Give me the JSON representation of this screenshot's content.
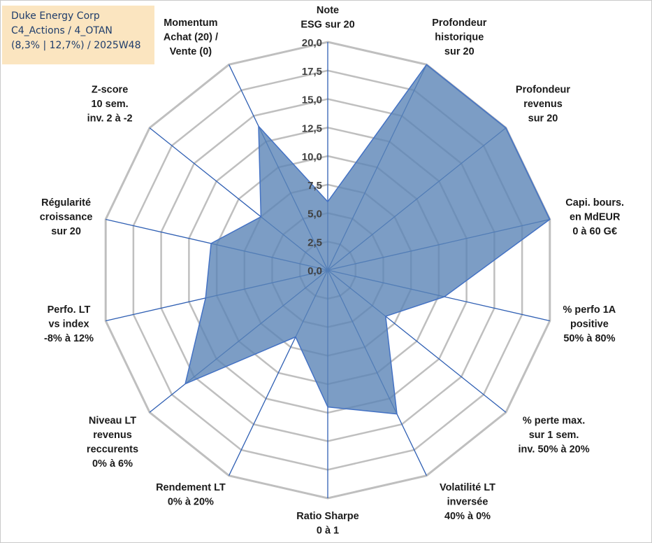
{
  "info": {
    "company": "Duke Energy Corp",
    "category": "C4_Actions / 4_OTAN",
    "stats": "(8,3% | 12,7%) / 2025W48"
  },
  "colors": {
    "fill": "#5b84b6",
    "stroke": "#4472c4",
    "grid": "#bfbfbf",
    "axis": "#2f5fb3",
    "info_bg": "#fbe5c0",
    "info_text": "#1f3d6b"
  },
  "chart_data": {
    "type": "radar",
    "rmin": 0,
    "rmax": 20,
    "step": 2.5,
    "tick_labels": [
      "0,0",
      "2,5",
      "5,0",
      "7,5",
      "10,0",
      "12,5",
      "15,0",
      "17,5",
      "20,0"
    ],
    "axes": [
      {
        "lines": [
          "Note",
          "ESG sur 20"
        ],
        "value": 6
      },
      {
        "lines": [
          "Profondeur",
          "historique",
          "sur 20"
        ],
        "value": 20
      },
      {
        "lines": [
          "Profondeur",
          "revenus",
          "sur 20"
        ],
        "value": 20
      },
      {
        "lines": [
          "Capi. bours.",
          "en MdEUR",
          "0 à 60 G€"
        ],
        "value": 20
      },
      {
        "lines": [
          "% perfo 1A",
          "positive",
          "50% à 80%"
        ],
        "value": 10.5
      },
      {
        "lines": [
          "% perte max.",
          "sur 1 sem.",
          "inv. 50% à 20%"
        ],
        "value": 6.5
      },
      {
        "lines": [
          "Volatilité LT",
          "inversée",
          "40% à 0%"
        ],
        "value": 14
      },
      {
        "lines": [
          "Ratio Sharpe",
          "0 à 1"
        ],
        "value": 12
      },
      {
        "lines": [
          "Rendement LT",
          "0% à 20%"
        ],
        "value": 6.5
      },
      {
        "lines": [
          "Niveau LT",
          "revenus",
          "reccurents",
          "0% à 6%"
        ],
        "value": 16
      },
      {
        "lines": [
          "Perfo. LT",
          "vs index",
          "-8% à 12%"
        ],
        "value": 11
      },
      {
        "lines": [
          "Régularité",
          "croissance",
          "sur 20"
        ],
        "value": 10.5
      },
      {
        "lines": [
          "Z-score",
          "10 sem.",
          "inv. 2 à -2"
        ],
        "value": 7.5
      },
      {
        "lines": [
          "Momentum",
          "Achat (20) /",
          "Vente (0)"
        ],
        "value": 14
      }
    ]
  }
}
